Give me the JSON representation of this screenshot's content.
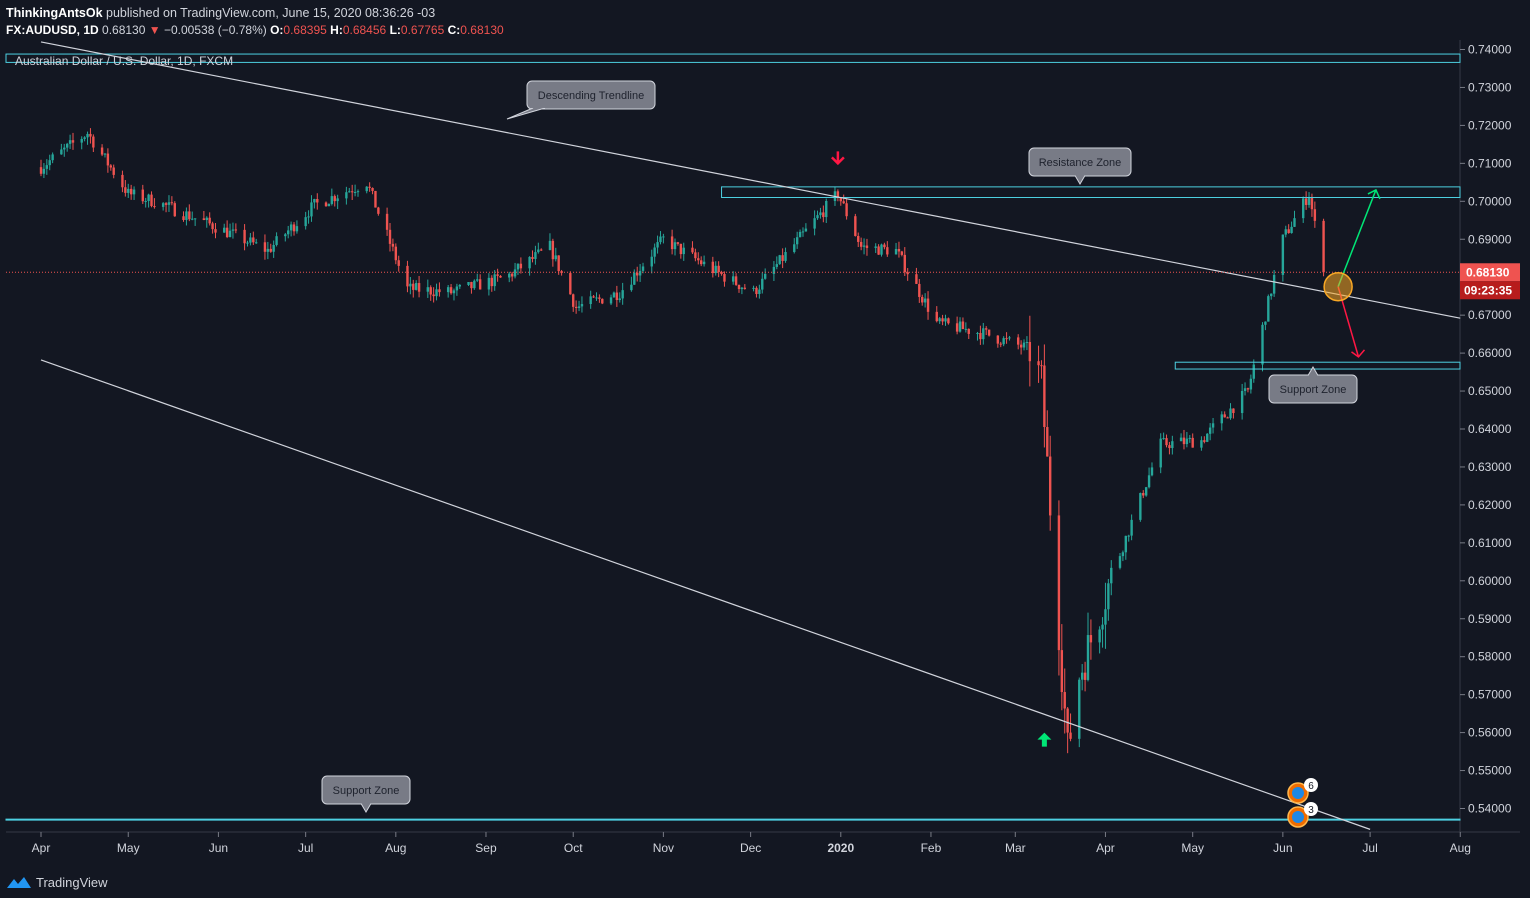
{
  "header": {
    "author": "ThinkingAntsOk",
    "published": "published on TradingView.com, June 15, 2020 08:36:26 -03",
    "symbol": "FX:AUDUSD, 1D",
    "last": "0.68130",
    "arrow": "▼",
    "change": "−0.00538 (−0.78%)",
    "o_label": "O:",
    "o_value": "0.68395",
    "h_label": "H:",
    "h_value": "0.68456",
    "l_label": "L:",
    "l_value": "0.67765",
    "c_label": "C:",
    "c_value": "0.68130"
  },
  "footer": {
    "brand": "TradingView",
    "brand_icon": "tradingview-logo-icon"
  },
  "colors": {
    "background": "#131722",
    "up": "#26a69a",
    "down": "#ef5350",
    "zone": "#4dd0e1",
    "trendline": "#d1d4dc",
    "price_line": "#ef5350",
    "up_arrow": "#00e676",
    "down_arrow": "#ff1744",
    "circle": "#f9a825"
  },
  "chart_data": {
    "type": "candlestick",
    "title": "Australian Dollar / U.S. Dollar, 1D, FXCM",
    "x_tick_labels": [
      "Apr",
      "May",
      "Jun",
      "Jul",
      "Aug",
      "Sep",
      "Oct",
      "Nov",
      "Dec",
      "2020",
      "Feb",
      "Mar",
      "Apr",
      "May",
      "Jun",
      "Jul",
      "Aug"
    ],
    "y_tick_labels": [
      "0.74000",
      "0.73000",
      "0.72000",
      "0.71000",
      "0.70000",
      "0.69000",
      "0.68000",
      "0.67000",
      "0.66000",
      "0.65000",
      "0.64000",
      "0.63000",
      "0.62000",
      "0.61000",
      "0.60000",
      "0.59000",
      "0.58000",
      "0.57000",
      "0.56000",
      "0.55000",
      "0.54000"
    ],
    "ylim": [
      0.5355,
      0.7415
    ],
    "current_price": "0.68130",
    "countdown": "09:23:35",
    "price_path": [
      [
        "2019-04-01",
        0.709
      ],
      [
        "2019-04-17",
        0.718
      ],
      [
        "2019-05-01",
        0.702
      ],
      [
        "2019-05-10",
        0.7
      ],
      [
        "2019-06-01",
        0.693
      ],
      [
        "2019-06-18",
        0.687
      ],
      [
        "2019-07-04",
        0.699
      ],
      [
        "2019-07-22",
        0.705
      ],
      [
        "2019-08-05",
        0.677
      ],
      [
        "2019-08-20",
        0.676
      ],
      [
        "2019-09-08",
        0.68
      ],
      [
        "2019-09-23",
        0.688
      ],
      [
        "2019-10-02",
        0.672
      ],
      [
        "2019-10-17",
        0.676
      ],
      [
        "2019-11-01",
        0.69
      ],
      [
        "2019-11-20",
        0.681
      ],
      [
        "2019-12-02",
        0.676
      ],
      [
        "2019-12-31",
        0.702
      ],
      [
        "2020-01-08",
        0.688
      ],
      [
        "2020-01-20",
        0.687
      ],
      [
        "2020-02-03",
        0.668
      ],
      [
        "2020-02-20",
        0.665
      ],
      [
        "2020-03-06",
        0.661
      ],
      [
        "2020-03-10",
        0.652
      ],
      [
        "2020-03-19",
        0.555
      ],
      [
        "2020-03-23",
        0.575
      ],
      [
        "2020-04-03",
        0.601
      ],
      [
        "2020-04-20",
        0.636
      ],
      [
        "2020-05-04",
        0.637
      ],
      [
        "2020-05-20",
        0.65
      ],
      [
        "2020-06-01",
        0.69
      ],
      [
        "2020-06-10",
        0.702
      ],
      [
        "2020-06-15",
        0.6813
      ]
    ],
    "annotations": [
      {
        "type": "label",
        "text": "Descending Trendline"
      },
      {
        "type": "label",
        "text": "Resistance Zone"
      },
      {
        "type": "label",
        "text": "Support Zone"
      },
      {
        "type": "label",
        "text": "Support Zone"
      },
      {
        "type": "zone",
        "name": "top-band",
        "y": [
          0.7366,
          0.7388
        ]
      },
      {
        "type": "zone",
        "name": "resistance",
        "y": [
          0.701,
          0.7038
        ]
      },
      {
        "type": "zone",
        "name": "support-mid",
        "y": [
          0.6558,
          0.6576
        ]
      },
      {
        "type": "zone",
        "name": "support-low",
        "y": [
          0.5371,
          0.5372
        ]
      },
      {
        "type": "trendline",
        "name": "descending",
        "points": [
          [
            "2019-04-01",
            0.742
          ],
          [
            "2020-08-01",
            0.6692
          ]
        ]
      },
      {
        "type": "trendline",
        "name": "lower-channel",
        "points": [
          [
            "2019-04-01",
            0.6582
          ],
          [
            "2020-07-01",
            0.5345
          ]
        ]
      },
      {
        "type": "arrow",
        "direction": "down",
        "date": "2019-12-31",
        "price": 0.71
      },
      {
        "type": "arrow",
        "direction": "up",
        "date": "2020-03-11",
        "price": 0.56
      }
    ],
    "grid": false,
    "legend": "none",
    "event_badges": [
      {
        "count": "6"
      },
      {
        "count": "3"
      }
    ]
  }
}
